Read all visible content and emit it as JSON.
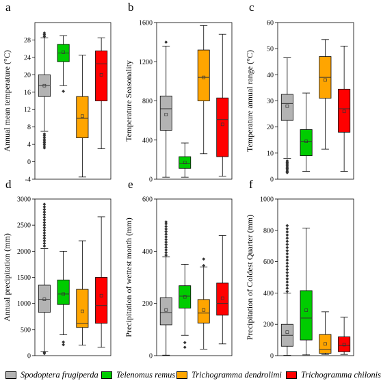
{
  "chart_data": [
    {
      "type": "box",
      "panel_letter": "a",
      "ylabel": "Annual mean temperature (°C)",
      "ylim": [
        -4,
        32
      ],
      "yticks": [
        -4,
        0,
        4,
        8,
        12,
        16,
        20,
        24,
        28
      ],
      "series": [
        {
          "name": "Spodoptera frugiperda",
          "color": "#b3b3b3",
          "whislo": 7,
          "q1": 15,
          "med": 17.5,
          "q3": 20,
          "whishi": 28.5,
          "mean": 17.5,
          "fliers": [
            3.2,
            3.6,
            4.0,
            4.4,
            4.8,
            5.2,
            5.6,
            6.0,
            6.4,
            28.8,
            29.2,
            29.6
          ]
        },
        {
          "name": "Telenomus remus",
          "color": "#00cc00",
          "whislo": 17.5,
          "q1": 23,
          "med": 25,
          "q3": 27,
          "whishi": 29,
          "mean": 25.2,
          "fliers": [
            16.2
          ]
        },
        {
          "name": "Trichogramma dendrolimi",
          "color": "#ffa500",
          "whislo": -3.5,
          "q1": 5.5,
          "med": 10,
          "q3": 15,
          "whishi": 24.5,
          "mean": 10.5,
          "fliers": []
        },
        {
          "name": "Trichogramma chilonis",
          "color": "#ff0000",
          "whislo": 3,
          "q1": 14,
          "med": 22.5,
          "q3": 25.5,
          "whishi": 28.5,
          "mean": 20,
          "fliers": []
        }
      ]
    },
    {
      "type": "box",
      "panel_letter": "b",
      "ylabel": "Temperature Seasonality",
      "ylim": [
        0,
        1600
      ],
      "yticks": [
        0,
        400,
        800,
        1200,
        1600
      ],
      "series": [
        {
          "name": "Spodoptera frugiperda",
          "color": "#b3b3b3",
          "whislo": 20,
          "q1": 500,
          "med": 720,
          "q3": 850,
          "whishi": 1360,
          "mean": 660,
          "fliers": [
            1400
          ]
        },
        {
          "name": "Telenomus remus",
          "color": "#00cc00",
          "whislo": 20,
          "q1": 110,
          "med": 160,
          "q3": 230,
          "whishi": 370,
          "mean": 170,
          "fliers": []
        },
        {
          "name": "Trichogramma dendrolimi",
          "color": "#ffa500",
          "whislo": 260,
          "q1": 800,
          "med": 1040,
          "q3": 1320,
          "whishi": 1570,
          "mean": 1040,
          "fliers": []
        },
        {
          "name": "Trichogramma chilonis",
          "color": "#ff0000",
          "whislo": 30,
          "q1": 230,
          "med": 610,
          "q3": 830,
          "whishi": 1480,
          "mean": 560,
          "fliers": []
        }
      ]
    },
    {
      "type": "box",
      "panel_letter": "c",
      "ylabel": "Temperature annual range (°C)",
      "ylim": [
        0,
        60
      ],
      "yticks": [
        0,
        10,
        20,
        30,
        40,
        50,
        60
      ],
      "series": [
        {
          "name": "Spodoptera frugiperda",
          "color": "#b3b3b3",
          "whislo": 8,
          "q1": 22.5,
          "med": 29,
          "q3": 32.5,
          "whishi": 46.5,
          "mean": 28,
          "fliers": [
            2.5,
            3.0,
            3.5,
            4.0,
            4.5,
            5.0,
            5.5,
            6.0,
            6.5,
            7.0
          ]
        },
        {
          "name": "Telenomus remus",
          "color": "#00cc00",
          "whislo": 3,
          "q1": 9,
          "med": 14.5,
          "q3": 19,
          "whishi": 33,
          "mean": 14.5,
          "fliers": []
        },
        {
          "name": "Trichogramma dendrolimi",
          "color": "#ffa500",
          "whislo": 11.5,
          "q1": 31,
          "med": 39,
          "q3": 47,
          "whishi": 53.5,
          "mean": 38,
          "fliers": []
        },
        {
          "name": "Trichogramma chilonis",
          "color": "#ff0000",
          "whislo": 3,
          "q1": 18,
          "med": 27,
          "q3": 34.5,
          "whishi": 51,
          "mean": 26,
          "fliers": []
        }
      ]
    },
    {
      "type": "box",
      "panel_letter": "d",
      "ylabel": "Annual precipitation (mm)",
      "ylim": [
        0,
        3000
      ],
      "yticks": [
        0,
        500,
        1000,
        1500,
        2000,
        2500,
        3000
      ],
      "series": [
        {
          "name": "Spodoptera frugiperda",
          "color": "#b3b3b3",
          "whislo": 80,
          "q1": 830,
          "med": 1080,
          "q3": 1350,
          "whishi": 2050,
          "mean": 1080,
          "fliers": [
            40,
            60,
            2100,
            2150,
            2200,
            2250,
            2300,
            2350,
            2400,
            2450,
            2500,
            2550,
            2600,
            2650,
            2700,
            2750,
            2800,
            2850,
            2900
          ]
        },
        {
          "name": "Telenomus remus",
          "color": "#00cc00",
          "whislo": 400,
          "q1": 980,
          "med": 1180,
          "q3": 1450,
          "whishi": 2000,
          "mean": 1180,
          "fliers": [
            210,
            260
          ]
        },
        {
          "name": "Trichogramma dendrolimi",
          "color": "#ffa500",
          "whislo": 200,
          "q1": 540,
          "med": 620,
          "q3": 1270,
          "whishi": 2200,
          "mean": 850,
          "fliers": []
        },
        {
          "name": "Trichogramma chilonis",
          "color": "#ff0000",
          "whislo": 160,
          "q1": 620,
          "med": 960,
          "q3": 1500,
          "whishi": 2660,
          "mean": 1150,
          "fliers": []
        }
      ]
    },
    {
      "type": "box",
      "panel_letter": "e",
      "ylabel": "Precipitation of wettest month (mm)",
      "ylim": [
        0,
        600
      ],
      "yticks": [
        0,
        200,
        400,
        600
      ],
      "series": [
        {
          "name": "Spodoptera frugiperda",
          "color": "#b3b3b3",
          "whislo": 2,
          "q1": 118,
          "med": 165,
          "q3": 222,
          "whishi": 378,
          "mean": 175,
          "fliers": [
            385,
            395,
            405,
            415,
            425,
            435,
            445,
            455,
            465,
            475,
            485,
            495,
            505,
            512
          ]
        },
        {
          "name": "Telenomus remus",
          "color": "#00cc00",
          "whislo": 78,
          "q1": 182,
          "med": 228,
          "q3": 268,
          "whishi": 350,
          "mean": 225,
          "fliers": [
            32,
            50
          ]
        },
        {
          "name": "Trichogramma dendrolimi",
          "color": "#ffa500",
          "whislo": 25,
          "q1": 125,
          "med": 163,
          "q3": 215,
          "whishi": 340,
          "mean": 175,
          "fliers": [
            345,
            370
          ]
        },
        {
          "name": "Trichogramma chilonis",
          "color": "#ff0000",
          "whislo": 45,
          "q1": 155,
          "med": 200,
          "q3": 278,
          "whishi": 460,
          "mean": 220,
          "fliers": []
        }
      ]
    },
    {
      "type": "box",
      "panel_letter": "f",
      "ylabel": "Precipitation of Coldest Quarter (mm)",
      "ylim": [
        0,
        1000
      ],
      "yticks": [
        0,
        200,
        400,
        600,
        800,
        1000
      ],
      "series": [
        {
          "name": "Spodoptera frugiperda",
          "color": "#b3b3b3",
          "whislo": 2,
          "q1": 60,
          "med": 130,
          "q3": 200,
          "whishi": 400,
          "mean": 150,
          "fliers": [
            410,
            430,
            450,
            470,
            490,
            510,
            530,
            550,
            570,
            590,
            610,
            630,
            650,
            670,
            690,
            710,
            730,
            750,
            770,
            790,
            810,
            830
          ]
        },
        {
          "name": "Telenomus remus",
          "color": "#00cc00",
          "whislo": 5,
          "q1": 100,
          "med": 240,
          "q3": 415,
          "whishi": 815,
          "mean": 290,
          "fliers": []
        },
        {
          "name": "Trichogramma dendrolimi",
          "color": "#ffa500",
          "whislo": 8,
          "q1": 15,
          "med": 40,
          "q3": 135,
          "whishi": 280,
          "mean": 75,
          "fliers": []
        },
        {
          "name": "Trichogramma chilonis",
          "color": "#ff0000",
          "whislo": 8,
          "q1": 25,
          "med": 65,
          "q3": 120,
          "whishi": 245,
          "mean": 70,
          "fliers": []
        }
      ]
    }
  ],
  "legend": [
    {
      "label": "Spodoptera frugiperda",
      "color": "#b3b3b3"
    },
    {
      "label": "Telenomus remus",
      "color": "#00cc00"
    },
    {
      "label": "Trichogramma dendrolimi",
      "color": "#ffa500"
    },
    {
      "label": "Trichogramma chilonis",
      "color": "#ff0000"
    }
  ],
  "style": {
    "text_color": "#000000",
    "axis_color": "#000000",
    "median_color": "#333333"
  }
}
